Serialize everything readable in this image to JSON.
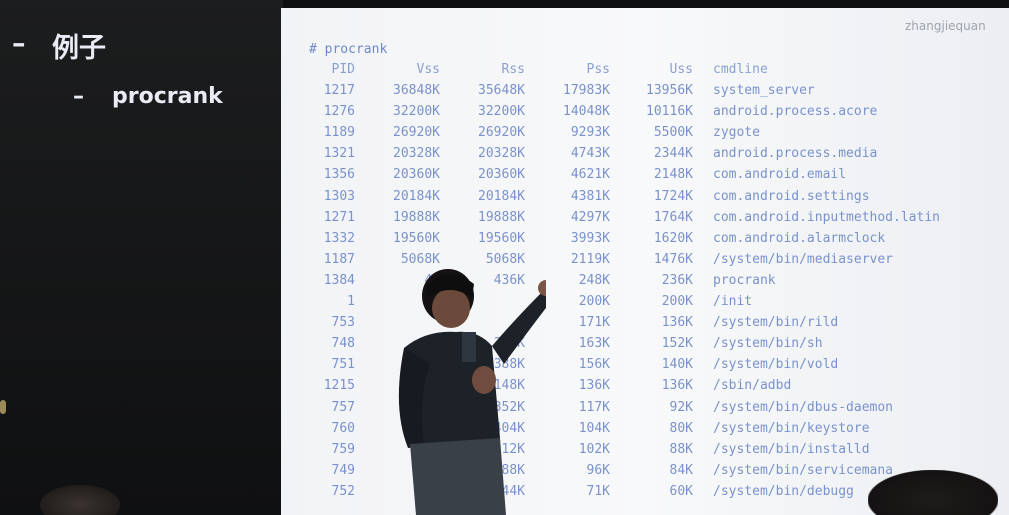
{
  "slide": {
    "bullet1_marker": "–",
    "bullet1_text": "例子",
    "bullet2_marker": "–",
    "bullet2_text": "procrank"
  },
  "watermark": "zhangjiequan",
  "terminal": {
    "command": "# procrank",
    "headers": [
      "PID",
      "Vss",
      "Rss",
      "Pss",
      "Uss",
      "cmdline"
    ],
    "rows": [
      [
        "1217",
        "36848K",
        "35648K",
        "17983K",
        "13956K",
        "system_server"
      ],
      [
        "1276",
        "32200K",
        "32200K",
        "14048K",
        "10116K",
        "android.process.acore"
      ],
      [
        "1189",
        "26920K",
        "26920K",
        "9293K",
        "5500K",
        "zygote"
      ],
      [
        "1321",
        "20328K",
        "20328K",
        "4743K",
        "2344K",
        "android.process.media"
      ],
      [
        "1356",
        "20360K",
        "20360K",
        "4621K",
        "2148K",
        "com.android.email"
      ],
      [
        "1303",
        "20184K",
        "20184K",
        "4381K",
        "1724K",
        "com.android.settings"
      ],
      [
        "1271",
        "19888K",
        "19888K",
        "4297K",
        "1764K",
        "com.android.inputmethod.latin"
      ],
      [
        "1332",
        "19560K",
        "19560K",
        "3993K",
        "1620K",
        "com.android.alarmclock"
      ],
      [
        "1187",
        "5068K",
        "5068K",
        "2119K",
        "1476K",
        "/system/bin/mediaserver"
      ],
      [
        "1384",
        "43",
        "436K",
        "248K",
        "236K",
        "procrank"
      ],
      [
        "1",
        "2",
        "",
        "200K",
        "200K",
        "/init"
      ],
      [
        "753",
        "",
        "",
        "171K",
        "136K",
        "/system/bin/rild"
      ],
      [
        "748",
        "",
        "340K",
        "163K",
        "152K",
        "/system/bin/sh"
      ],
      [
        "751",
        "",
        "388K",
        "156K",
        "140K",
        "/system/bin/vold"
      ],
      [
        "1215",
        "",
        "148K",
        "136K",
        "136K",
        "/sbin/adbd"
      ],
      [
        "757",
        "",
        "352K",
        "117K",
        "92K",
        "/system/bin/dbus-daemon"
      ],
      [
        "760",
        "",
        "404K",
        "104K",
        "80K",
        "/system/bin/keystore"
      ],
      [
        "759",
        "",
        "312K",
        "102K",
        "88K",
        "/system/bin/installd"
      ],
      [
        "749",
        "",
        "288K",
        "96K",
        "84K",
        "/system/bin/servicemana"
      ],
      [
        "752",
        "2",
        "244K",
        "71K",
        "60K",
        "/system/bin/debugg"
      ]
    ]
  }
}
